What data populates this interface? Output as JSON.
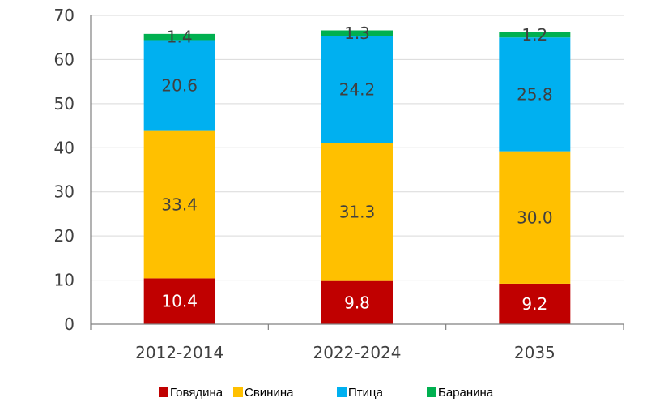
{
  "chart_data": {
    "type": "bar",
    "stacked": true,
    "categories": [
      "2012-2014",
      "2022-2024",
      "2035"
    ],
    "series": [
      {
        "name": "Говядина",
        "color": "#c00000",
        "values": [
          10.4,
          9.8,
          9.2
        ],
        "label_color": "#ffffff"
      },
      {
        "name": "Свинина",
        "color": "#ffc000",
        "values": [
          33.4,
          31.3,
          30.0
        ],
        "labels": [
          "33.4",
          "31.3",
          "30.0"
        ],
        "label_color": "#404040"
      },
      {
        "name": "Птица",
        "color": "#00b0f0",
        "values": [
          20.6,
          24.2,
          25.8
        ],
        "label_color": "#404040"
      },
      {
        "name": "Баранина",
        "color": "#00b050",
        "values": [
          1.4,
          1.3,
          1.2
        ],
        "label_color": "#404040"
      }
    ],
    "ylim": [
      0,
      70
    ],
    "yticks": [
      0,
      10,
      20,
      30,
      40,
      50,
      60,
      70
    ],
    "grid": true,
    "legend_position": "bottom"
  }
}
